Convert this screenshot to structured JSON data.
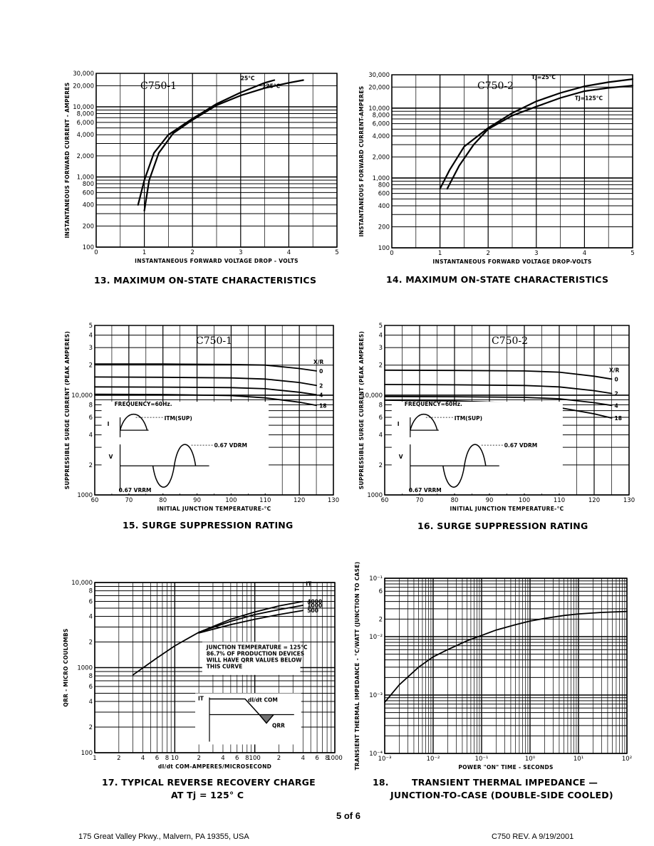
{
  "page": {
    "number": "5 of 6",
    "footer_left": "175 Great Valley Pkwy., Malvern, PA 19355, USA",
    "footer_right": "C750 REV. A   9/19/2001"
  },
  "captions": {
    "c13": "13.  MAXIMUM ON-STATE CHARACTERISTICS",
    "c14": "14.  MAXIMUM ON-STATE CHARACTERISTICS",
    "c15": "15.  SURGE SUPPRESSION RATING",
    "c16": "16.  SURGE SUPPRESSION RATING",
    "c17_line1": "17.  TYPICAL REVERSE RECOVERY CHARGE",
    "c17_line2": "AT Tj = 125° C",
    "c18_num": "18.",
    "c18_line1": "TRANSIENT THERMAL IMPEDANCE —",
    "c18_line2": "JUNCTION-TO-CASE (DOUBLE-SIDE COOLED)"
  },
  "chart_data": [
    {
      "id": "fig13",
      "type": "line",
      "model": "C750-1",
      "xlabel": "INSTANTANEOUS FORWARD VOLTAGE DROP - VOLTS",
      "ylabel": "INSTANTANEOUS FORWARD CURRENT - AMPERES",
      "xlim": [
        0,
        5
      ],
      "ylim": [
        100,
        30000
      ],
      "yscale": "log",
      "xticks": [
        "0",
        "1",
        "2",
        "3",
        "4",
        "5"
      ],
      "yticks": [
        {
          "v": 100,
          "t": "100"
        },
        {
          "v": 200,
          "t": "200"
        },
        {
          "v": 400,
          "t": "400"
        },
        {
          "v": 600,
          "t": "600"
        },
        {
          "v": 800,
          "t": "800"
        },
        {
          "v": 1000,
          "t": "1,000"
        },
        {
          "v": 2000,
          "t": "2,000"
        },
        {
          "v": 4000,
          "t": "4,000"
        },
        {
          "v": 6000,
          "t": "6,000"
        },
        {
          "v": 8000,
          "t": "8,000"
        },
        {
          "v": 10000,
          "t": "10,000"
        },
        {
          "v": 20000,
          "t": "20,000"
        },
        {
          "v": 30000,
          "t": "30,000"
        }
      ],
      "series": [
        {
          "name": "25°C",
          "label_at": [
            3.0,
            24000
          ],
          "points": [
            [
              0.87,
              400
            ],
            [
              1.0,
              900
            ],
            [
              1.2,
              2200
            ],
            [
              1.5,
              4000
            ],
            [
              2.0,
              6800
            ],
            [
              2.5,
              11000
            ],
            [
              3.0,
              16000
            ],
            [
              3.5,
              22000
            ],
            [
              3.7,
              24000
            ]
          ]
        },
        {
          "name": "125°C",
          "label_at": [
            3.45,
            18500
          ],
          "points": [
            [
              1.0,
              330
            ],
            [
              1.1,
              900
            ],
            [
              1.3,
              2200
            ],
            [
              1.6,
              4200
            ],
            [
              2.0,
              6500
            ],
            [
              2.5,
              10500
            ],
            [
              3.0,
              14500
            ],
            [
              3.5,
              18500
            ],
            [
              4.0,
              22000
            ],
            [
              4.3,
              24000
            ]
          ]
        }
      ]
    },
    {
      "id": "fig14",
      "type": "line",
      "model": "C750-2",
      "xlabel": "INSTANTANEOUS FORWARD VOLTAGE DROP-VOLTS",
      "ylabel": "INSTANTANEOUS FORWARD CURRENT-AMPERES",
      "xlim": [
        0,
        5
      ],
      "ylim": [
        100,
        30000
      ],
      "yscale": "log",
      "xticks": [
        "0",
        "1",
        "2",
        "3",
        "4",
        "5"
      ],
      "yticks": [
        {
          "v": 100,
          "t": "100"
        },
        {
          "v": 200,
          "t": "200"
        },
        {
          "v": 400,
          "t": "400"
        },
        {
          "v": 600,
          "t": "600"
        },
        {
          "v": 800,
          "t": "800"
        },
        {
          "v": 1000,
          "t": "1,000"
        },
        {
          "v": 2000,
          "t": "2,000"
        },
        {
          "v": 4000,
          "t": "4,000"
        },
        {
          "v": 6000,
          "t": "6,000"
        },
        {
          "v": 8000,
          "t": "8,000"
        },
        {
          "v": 10000,
          "t": "10,000"
        },
        {
          "v": 20000,
          "t": "20,000"
        },
        {
          "v": 30000,
          "t": "30,000"
        }
      ],
      "series": [
        {
          "name": "TJ=25°C",
          "label_at": [
            2.9,
            26000
          ],
          "points": [
            [
              1.0,
              700
            ],
            [
              1.2,
              1300
            ],
            [
              1.5,
              2800
            ],
            [
              2.0,
              5200
            ],
            [
              2.5,
              8500
            ],
            [
              3.0,
              12500
            ],
            [
              3.5,
              16500
            ],
            [
              4.0,
              20500
            ],
            [
              4.5,
              23500
            ],
            [
              5.0,
              26000
            ]
          ]
        },
        {
          "name": "TJ=125°C",
          "label_at": [
            3.8,
            13000
          ],
          "points": [
            [
              1.15,
              700
            ],
            [
              1.4,
              1500
            ],
            [
              1.7,
              3000
            ],
            [
              2.0,
              5000
            ],
            [
              2.5,
              7800
            ],
            [
              3.0,
              10500
            ],
            [
              3.5,
              14000
            ],
            [
              4.0,
              17500
            ],
            [
              4.5,
              19500
            ],
            [
              5.0,
              21000
            ]
          ]
        }
      ]
    },
    {
      "id": "fig15",
      "type": "line",
      "model": "C750-1",
      "xlabel": "INITIAL JUNCTION TEMPERATURE-°C",
      "ylabel": "SUPPRESSIBLE SURGE CURRENT (PEAK AMPERES)",
      "xlim": [
        60,
        130
      ],
      "ylim": [
        1000,
        50000
      ],
      "yscale": "log",
      "xticks": [
        "60",
        "70",
        "80",
        "90",
        "100",
        "110",
        "120",
        "130"
      ],
      "yticks": [
        {
          "v": 1000,
          "t": "1000"
        },
        {
          "v": 2000,
          "t": "2"
        },
        {
          "v": 4000,
          "t": "4"
        },
        {
          "v": 6000,
          "t": "6"
        },
        {
          "v": 8000,
          "t": "8"
        },
        {
          "v": 10000,
          "t": "10,000"
        },
        {
          "v": 20000,
          "t": "2"
        },
        {
          "v": 30000,
          "t": "3"
        },
        {
          "v": 40000,
          "t": "4"
        },
        {
          "v": 50000,
          "t": "5"
        }
      ],
      "legend_title": "X/R",
      "series": [
        {
          "name": "0",
          "points": [
            [
              60,
              20500
            ],
            [
              80,
              20500
            ],
            [
              100,
              20300
            ],
            [
              110,
              20000
            ],
            [
              120,
              18500
            ],
            [
              125,
              17500
            ]
          ]
        },
        {
          "name": "2",
          "points": [
            [
              60,
              15200
            ],
            [
              80,
              15100
            ],
            [
              100,
              14900
            ],
            [
              110,
              14500
            ],
            [
              120,
              13400
            ],
            [
              125,
              12500
            ]
          ]
        },
        {
          "name": "4",
          "points": [
            [
              60,
              12100
            ],
            [
              80,
              12050
            ],
            [
              100,
              11900
            ],
            [
              110,
              11600
            ],
            [
              120,
              10700
            ],
            [
              125,
              10100
            ]
          ]
        },
        {
          "name": "18",
          "points": [
            [
              60,
              10200
            ],
            [
              80,
              10150
            ],
            [
              100,
              9900
            ],
            [
              110,
              9400
            ],
            [
              120,
              8500
            ],
            [
              125,
              7900
            ]
          ]
        }
      ],
      "inset": {
        "frequency": "FREQUENCY=60Hz.",
        "itm": "ITM(SUP)",
        "vdrm": "0.67 VDRM",
        "vrrm": "0.67 VRRM",
        "i": "I",
        "v": "V"
      }
    },
    {
      "id": "fig16",
      "type": "line",
      "model": "C750-2",
      "xlabel": "INITIAL JUNCTION TEMPERATURE-°C",
      "ylabel": "SUPPRESSIBLE SURGE CURRENT (PEAK AMPERES)",
      "xlim": [
        60,
        130
      ],
      "ylim": [
        1000,
        50000
      ],
      "yscale": "log",
      "xticks": [
        "60",
        "70",
        "80",
        "90",
        "100",
        "110",
        "120",
        "130"
      ],
      "yticks": [
        {
          "v": 1000,
          "t": "1000"
        },
        {
          "v": 2000,
          "t": "2"
        },
        {
          "v": 4000,
          "t": "4"
        },
        {
          "v": 6000,
          "t": "6"
        },
        {
          "v": 8000,
          "t": "8"
        },
        {
          "v": 10000,
          "t": "10,000"
        },
        {
          "v": 20000,
          "t": "2"
        },
        {
          "v": 30000,
          "t": "3"
        },
        {
          "v": 40000,
          "t": "4"
        },
        {
          "v": 50000,
          "t": "5"
        }
      ],
      "legend_title": "X/R",
      "series": [
        {
          "name": "0",
          "points": [
            [
              60,
              17800
            ],
            [
              80,
              17700
            ],
            [
              100,
              17500
            ],
            [
              110,
              17000
            ],
            [
              120,
              15500
            ],
            [
              125,
              14500
            ]
          ]
        },
        {
          "name": "2",
          "points": [
            [
              60,
              12800
            ],
            [
              80,
              12700
            ],
            [
              100,
              12500
            ],
            [
              110,
              12100
            ],
            [
              120,
              11100
            ],
            [
              125,
              10400
            ]
          ]
        },
        {
          "name": "4",
          "points": [
            [
              60,
              9700
            ],
            [
              80,
              9650
            ],
            [
              100,
              9500
            ],
            [
              110,
              9200
            ],
            [
              120,
              8400
            ],
            [
              125,
              7900
            ]
          ]
        },
        {
          "name": "18",
          "points": [
            [
              60,
              8900
            ],
            [
              80,
              8750
            ],
            [
              100,
              8300
            ],
            [
              110,
              7500
            ],
            [
              120,
              6500
            ],
            [
              125,
              5900
            ]
          ]
        }
      ],
      "inset": {
        "frequency": "FREQUENCY=60Hz.",
        "itm": "ITM(SUP)",
        "vdrm": "0.67 VDRM",
        "vrrm": "0.67 VRRM",
        "i": "I",
        "v": "V"
      }
    },
    {
      "id": "fig17",
      "type": "line",
      "model": "",
      "xlabel": "dI/dt COM-AMPERES/MICROSECOND",
      "ylabel": "QRR - MICRO COULOMBS",
      "xlim": [
        1,
        1000
      ],
      "ylim": [
        100,
        10000
      ],
      "xscale": "log",
      "yscale": "log",
      "xticks": [
        {
          "v": 1,
          "t": "1"
        },
        {
          "v": 2,
          "t": "2"
        },
        {
          "v": 4,
          "t": "4"
        },
        {
          "v": 6,
          "t": "6"
        },
        {
          "v": 8,
          "t": "8"
        },
        {
          "v": 10,
          "t": "10"
        },
        {
          "v": 20,
          "t": "2"
        },
        {
          "v": 40,
          "t": "4"
        },
        {
          "v": 60,
          "t": "6"
        },
        {
          "v": 80,
          "t": "8"
        },
        {
          "v": 100,
          "t": "100"
        },
        {
          "v": 200,
          "t": "2"
        },
        {
          "v": 400,
          "t": "4"
        },
        {
          "v": 600,
          "t": "6"
        },
        {
          "v": 800,
          "t": "8"
        },
        {
          "v": 1000,
          "t": "1000"
        }
      ],
      "yticks": [
        {
          "v": 100,
          "t": "100"
        },
        {
          "v": 200,
          "t": "2"
        },
        {
          "v": 400,
          "t": "4"
        },
        {
          "v": 600,
          "t": "6"
        },
        {
          "v": 800,
          "t": "8"
        },
        {
          "v": 1000,
          "t": "1000"
        },
        {
          "v": 2000,
          "t": "2"
        },
        {
          "v": 4000,
          "t": "4"
        },
        {
          "v": 6000,
          "t": "6"
        },
        {
          "v": 8000,
          "t": "8"
        },
        {
          "v": 10000,
          "t": "10,000"
        }
      ],
      "legend_title": "IT",
      "series": [
        {
          "name": "4000",
          "points": [
            [
              3,
              820
            ],
            [
              6,
              1300
            ],
            [
              10,
              1800
            ],
            [
              20,
              2600
            ],
            [
              50,
              3700
            ],
            [
              100,
              4500
            ],
            [
              200,
              5300
            ],
            [
              400,
              6000
            ]
          ]
        },
        {
          "name": "1000",
          "points": [
            [
              20,
              2600
            ],
            [
              50,
              3500
            ],
            [
              100,
              4200
            ],
            [
              200,
              4800
            ],
            [
              400,
              5400
            ]
          ]
        },
        {
          "name": "500",
          "points": [
            [
              20,
              2550
            ],
            [
              50,
              3200
            ],
            [
              100,
              3700
            ],
            [
              200,
              4200
            ],
            [
              400,
              4700
            ]
          ]
        }
      ],
      "note": [
        "JUNCTION TEMPERATURE = 125°C",
        "86.7% OF PRODUCTION DEVICES",
        "WILL HAVE QRR VALUES BELOW",
        "THIS CURVE"
      ],
      "inset": {
        "it": "IT",
        "didt": "dI/dt COM",
        "qrr": "QRR"
      }
    },
    {
      "id": "fig18",
      "type": "line",
      "model": "",
      "xlabel": "POWER \"ON\" TIME - SECONDS",
      "ylabel": "TRANSIENT THERMAL IMPEDANCE - °C/WATT (JUNCTION TO CASE)",
      "xlim": [
        0.001,
        100
      ],
      "ylim": [
        0.0001,
        0.1
      ],
      "xscale": "log",
      "yscale": "log",
      "xticks": [
        {
          "v": 0.001,
          "t": "10⁻³"
        },
        {
          "v": 0.01,
          "t": "10⁻²"
        },
        {
          "v": 0.1,
          "t": "10⁻¹"
        },
        {
          "v": 1,
          "t": "10⁰"
        },
        {
          "v": 10,
          "t": "10¹"
        },
        {
          "v": 100,
          "t": "10²"
        }
      ],
      "yticks": [
        {
          "v": 0.0001,
          "t": "10⁻⁴"
        },
        {
          "v": 0.001,
          "t": "10⁻³"
        },
        {
          "v": 0.01,
          "t": "10⁻²"
        },
        {
          "v": 0.02,
          "t": "2"
        },
        {
          "v": 0.06,
          "t": "6"
        },
        {
          "v": 0.1,
          "t": "10⁻¹"
        }
      ],
      "series": [
        {
          "name": "",
          "points": [
            [
              0.001,
              0.00075
            ],
            [
              0.002,
              0.0015
            ],
            [
              0.005,
              0.003
            ],
            [
              0.01,
              0.0045
            ],
            [
              0.02,
              0.006
            ],
            [
              0.05,
              0.0085
            ],
            [
              0.1,
              0.0105
            ],
            [
              0.2,
              0.013
            ],
            [
              0.5,
              0.016
            ],
            [
              1,
              0.0185
            ],
            [
              2,
              0.0205
            ],
            [
              5,
              0.023
            ],
            [
              10,
              0.0245
            ],
            [
              30,
              0.026
            ],
            [
              100,
              0.027
            ]
          ]
        }
      ]
    }
  ]
}
